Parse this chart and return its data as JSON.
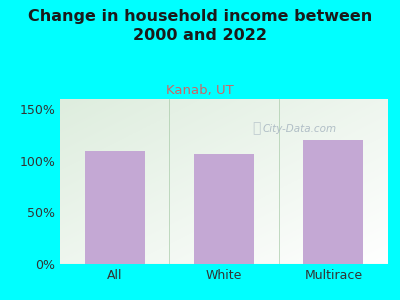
{
  "title": "Change in household income between\n2000 and 2022",
  "subtitle": "Kanab, UT",
  "categories": [
    "All",
    "White",
    "Multirace"
  ],
  "values": [
    110,
    107,
    120
  ],
  "bar_color": "#c4a8d4",
  "bg_color": "#00ffff",
  "plot_bg_top_left": "#ddeedd",
  "plot_bg_bottom_right": "#f0f4ee",
  "title_fontsize": 11.5,
  "subtitle_fontsize": 9.5,
  "tick_fontsize": 9,
  "ylabel_ticks": [
    0,
    50,
    100,
    150
  ],
  "ylim": [
    0,
    160
  ],
  "title_color": "#1a1a1a",
  "subtitle_color": "#cc6666",
  "tick_color": "#333333",
  "watermark_text": "City-Data.com",
  "watermark_color": "#aab8c2"
}
